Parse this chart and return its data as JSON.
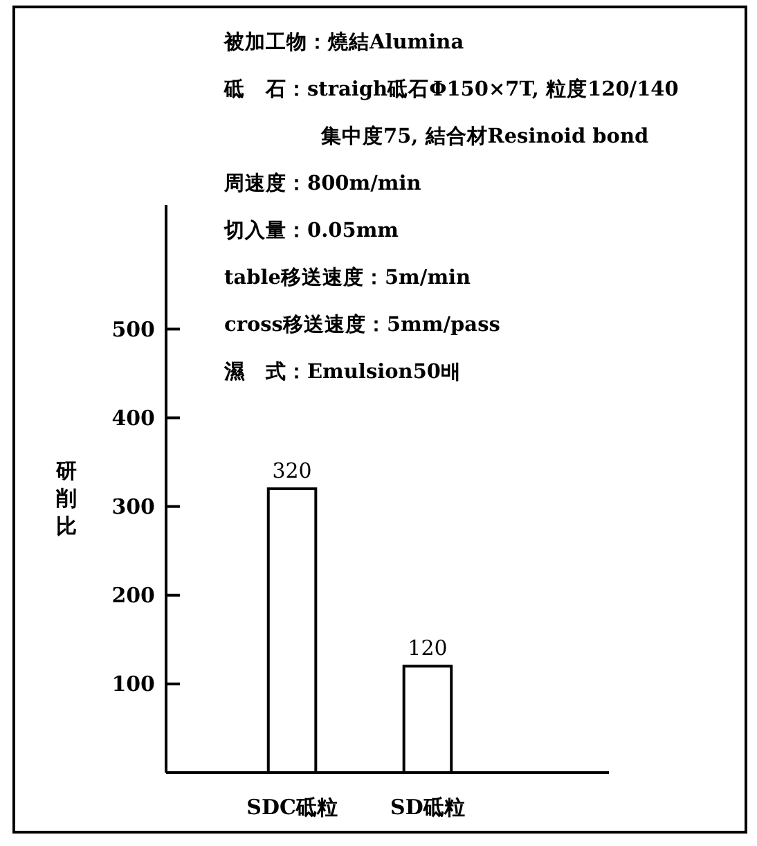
{
  "chart_data": {
    "type": "bar",
    "ylabel": "研削比",
    "categories": [
      "SDC砥粒",
      "SD砥粒"
    ],
    "values": [
      320,
      120
    ],
    "color": "#ffffff",
    "data_labels": true,
    "ylim": [
      0,
      640
    ],
    "yticks": [
      100,
      200,
      300,
      400,
      500
    ],
    "grid": false,
    "annotations": [
      "被加工物：燒結Alumina",
      "砥　石：straigh砥石Φ150×7T, 粒度120/140",
      "集中度75, 結合材Resinoid  bond",
      "周速度：800m/min",
      "切入量：0.05mm",
      "table移送速度：5m/min",
      "cross移送速度：5mm/pass",
      "濕　式：Emulsion50배"
    ]
  }
}
